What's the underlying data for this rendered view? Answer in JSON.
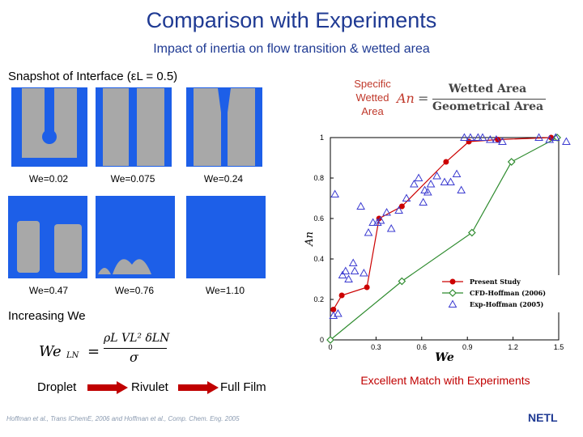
{
  "title": "Comparison with Experiments",
  "subtitle": "Impact of inertia on flow transition & wetted area",
  "snapshot_label": "Snapshot of Interface (εL = 0.5)",
  "snapshots": [
    {
      "we": "We=0.02"
    },
    {
      "we": "We=0.075"
    },
    {
      "we": "We=0.24"
    },
    {
      "we": "We=0.47"
    },
    {
      "we": "We=0.76"
    },
    {
      "we": "We=1.10"
    }
  ],
  "increasing": "Increasing We",
  "formula_lhs": "We",
  "formula_sub": "LN",
  "formula_num": "ρL VL² δLN",
  "formula_den": "σ",
  "stages": [
    "Droplet",
    "Rivulet",
    "Full Film"
  ],
  "specific": [
    "Specific",
    "Wetted",
    "Area"
  ],
  "an_symbol": "An",
  "an_num": "Wetted Area",
  "an_den": "Geometrical Area",
  "match": "Excellent Match with Experiments",
  "citation": "Hoffman et al., Trans IChemE, 2006 and Hoffman et al., Comp. Chem. Eng. 2005",
  "logo": "NETL",
  "colors": {
    "title": "#1f3a93",
    "liquid": "#1d5fe8",
    "present": "#cc0000",
    "cfd": "#2e8b2e",
    "exp": "#3a3ad0"
  },
  "chart_data": {
    "type": "scatter",
    "xlabel": "We",
    "ylabel": "An",
    "xlim": [
      0,
      1.5
    ],
    "ylim": [
      0,
      1
    ],
    "xticks": [
      "0",
      "0.3",
      "0.6",
      "0.9",
      "1.2",
      "1.5"
    ],
    "yticks": [
      "0",
      "0.2",
      "0.4",
      "0.6",
      "0.8",
      "1"
    ],
    "legend": [
      "Present Study",
      "CFD-Hoffman (2006)",
      "Exp-Hoffman (2005)"
    ],
    "series": [
      {
        "name": "Present Study",
        "marker": "circle",
        "line": true,
        "x": [
          0.02,
          0.075,
          0.24,
          0.32,
          0.47,
          0.76,
          0.91,
          1.1,
          1.45
        ],
        "y": [
          0.15,
          0.22,
          0.26,
          0.6,
          0.66,
          0.88,
          0.98,
          0.99,
          1.0
        ]
      },
      {
        "name": "CFD-Hoffman (2006)",
        "marker": "diamond",
        "line": true,
        "x": [
          0,
          0.47,
          0.93,
          1.19,
          1.49
        ],
        "y": [
          0,
          0.29,
          0.53,
          0.88,
          1.0
        ]
      },
      {
        "name": "Exp-Hoffman (2005)",
        "marker": "triangle",
        "line": false,
        "x": [
          0.02,
          0.05,
          0.08,
          0.03,
          0.1,
          0.12,
          0.15,
          0.2,
          0.25,
          0.28,
          0.31,
          0.33,
          0.37,
          0.4,
          0.45,
          0.5,
          0.55,
          0.58,
          0.62,
          0.66,
          0.7,
          0.75,
          0.79,
          0.83,
          0.86,
          0.88,
          0.92,
          0.97,
          1.0,
          1.05,
          1.09,
          1.13,
          1.37,
          1.44,
          1.48,
          1.55,
          0.16,
          0.22,
          0.61,
          0.64
        ],
        "y": [
          0.12,
          0.13,
          0.32,
          0.72,
          0.34,
          0.3,
          0.38,
          0.66,
          0.53,
          0.58,
          0.58,
          0.59,
          0.63,
          0.55,
          0.64,
          0.7,
          0.77,
          0.8,
          0.74,
          0.77,
          0.81,
          0.78,
          0.78,
          0.82,
          0.74,
          1.0,
          1.0,
          1.0,
          1.0,
          0.99,
          0.99,
          0.98,
          1.0,
          0.99,
          1.0,
          0.98,
          0.34,
          0.33,
          0.68,
          0.73
        ]
      }
    ]
  }
}
